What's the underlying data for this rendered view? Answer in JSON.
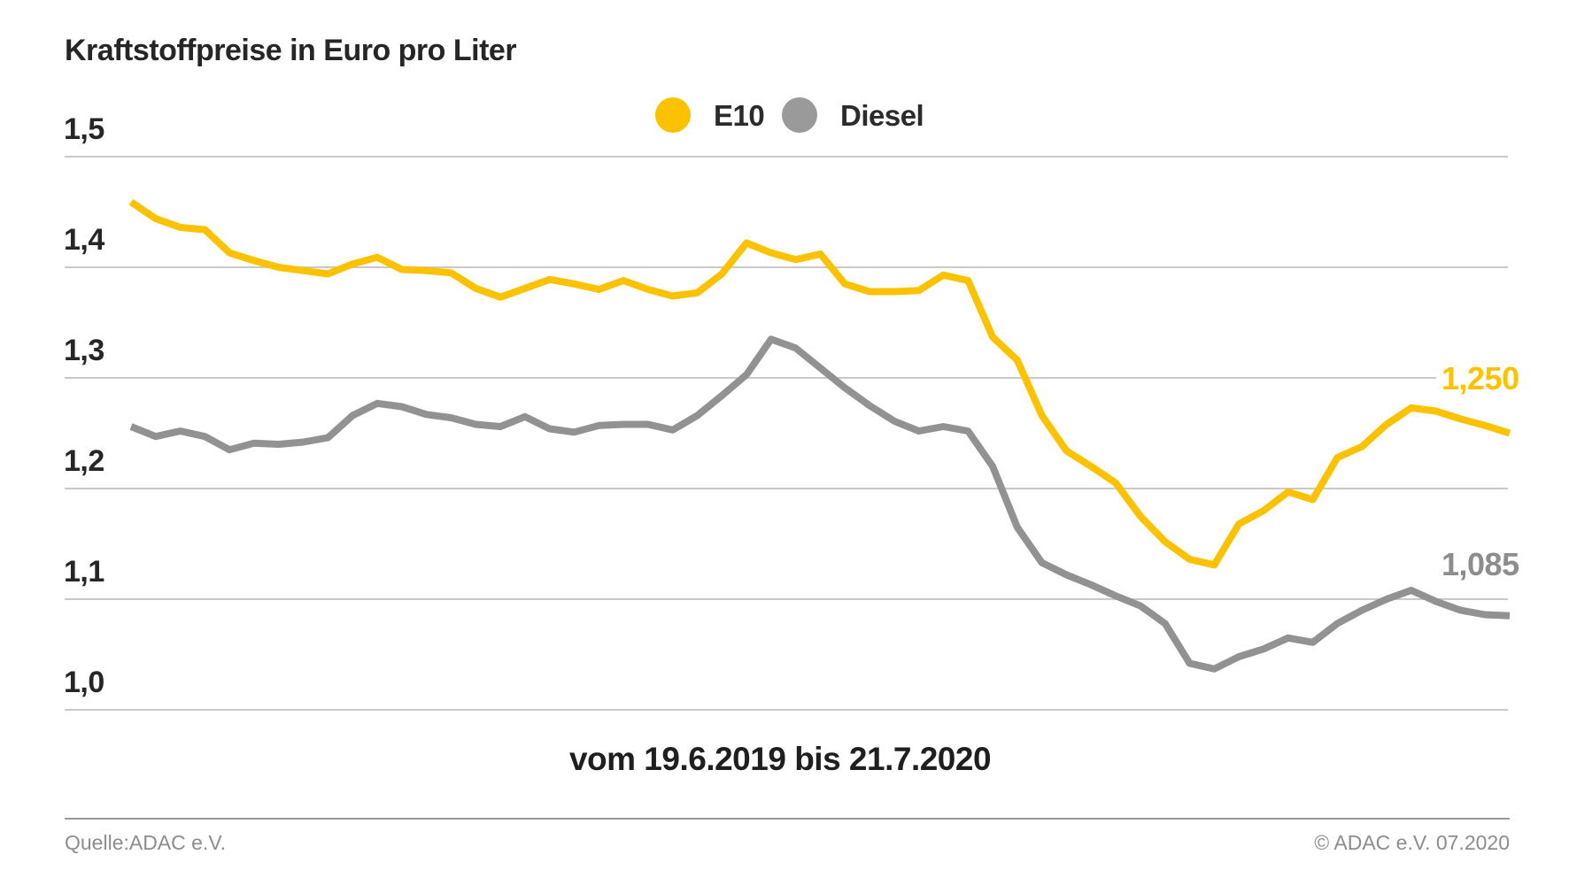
{
  "title": "Kraftstoffpreise in Euro pro Liter",
  "legend": {
    "e10_label": "E10",
    "diesel_label": "Diesel"
  },
  "x_caption": "vom 19.6.2019 bis 21.7.2020",
  "footer": {
    "source": "Quelle:ADAC e.V.",
    "copyright": "© ADAC e.V. 07.2020"
  },
  "colors": {
    "e10": "#FCC200",
    "diesel": "#929292",
    "legend_diesel_dot": "#9A9A9A",
    "gridline": "#C9C9C9",
    "text_dark": "#262626",
    "footer_gray": "#8d8d8d",
    "diesel_label_gray": "#8D8D8D"
  },
  "chart_data": {
    "type": "line",
    "title": "Kraftstoffpreise in Euro pro Liter",
    "xlabel": "vom 19.6.2019 bis 21.7.2020",
    "ylabel": "Euro pro Liter",
    "ylim": [
      1.0,
      1.5
    ],
    "grid": "horizontal",
    "legend_position": "top-center",
    "y_axis": {
      "ticks": [
        {
          "label": "1,5",
          "value": 1.5
        },
        {
          "label": "1,4",
          "value": 1.4
        },
        {
          "label": "1,3",
          "value": 1.3
        },
        {
          "label": "1,2",
          "value": 1.2
        },
        {
          "label": "1,1",
          "value": 1.1
        },
        {
          "label": "1,0",
          "value": 1.0
        }
      ]
    },
    "x_start_date": "19.6.2019",
    "x_end_date": "21.7.2020",
    "series": [
      {
        "name": "E10",
        "color": "#FCC200",
        "end_label": "1,250",
        "end_value": 1.25,
        "values": [
          1.459,
          1.444,
          1.436,
          1.434,
          1.413,
          1.406,
          1.4,
          1.397,
          1.394,
          1.403,
          1.409,
          1.398,
          1.397,
          1.395,
          1.381,
          1.373,
          1.381,
          1.389,
          1.385,
          1.38,
          1.388,
          1.38,
          1.374,
          1.377,
          1.394,
          1.422,
          1.413,
          1.407,
          1.412,
          1.385,
          1.378,
          1.378,
          1.379,
          1.393,
          1.388,
          1.337,
          1.316,
          1.266,
          1.234,
          1.22,
          1.205,
          1.175,
          1.152,
          1.136,
          1.131,
          1.168,
          1.18,
          1.197,
          1.19,
          1.228,
          1.238,
          1.258,
          1.273,
          1.27,
          1.263,
          1.257,
          1.25
        ]
      },
      {
        "name": "Diesel",
        "color": "#929292",
        "end_label": "1,085",
        "end_value": 1.085,
        "values": [
          1.256,
          1.247,
          1.252,
          1.247,
          1.235,
          1.241,
          1.24,
          1.242,
          1.246,
          1.266,
          1.277,
          1.274,
          1.267,
          1.264,
          1.258,
          1.256,
          1.265,
          1.254,
          1.251,
          1.257,
          1.258,
          1.258,
          1.253,
          1.266,
          1.284,
          1.303,
          1.335,
          1.327,
          1.309,
          1.291,
          1.275,
          1.261,
          1.252,
          1.256,
          1.252,
          1.22,
          1.165,
          1.133,
          1.122,
          1.113,
          1.103,
          1.094,
          1.078,
          1.042,
          1.037,
          1.048,
          1.055,
          1.065,
          1.061,
          1.078,
          1.09,
          1.1,
          1.108,
          1.098,
          1.09,
          1.086,
          1.085
        ]
      }
    ]
  }
}
